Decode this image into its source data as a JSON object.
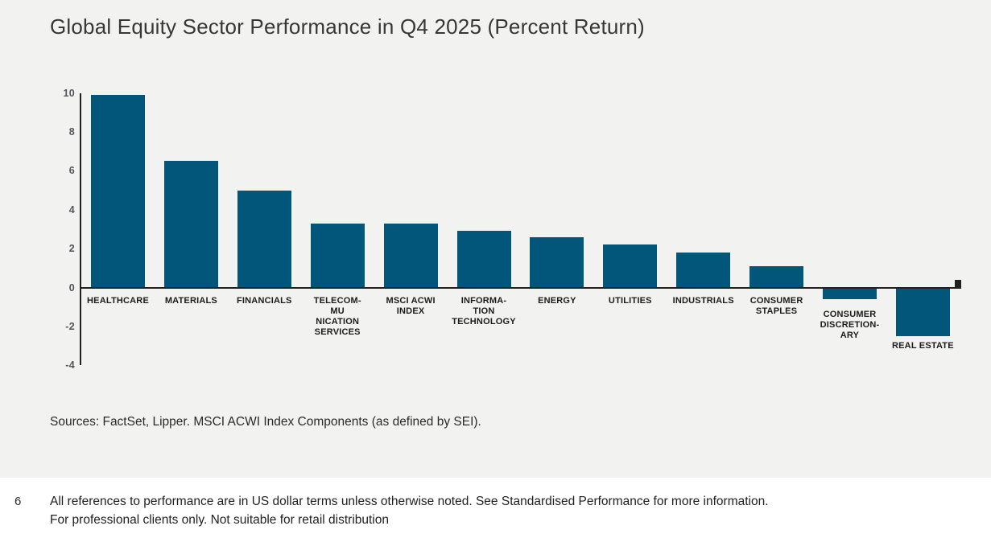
{
  "title": "Global Equity Sector Performance in Q4 2025 (Percent Return)",
  "chart_data": {
    "type": "bar",
    "title": "Global Equity Sector Performance in Q4 2025 (Percent Return)",
    "categories": [
      "HEALTHCARE",
      "MATERIALS",
      "FINANCIALS",
      "TELECOMMUNICATION SERVICES",
      "MSCI ACWI INDEX",
      "INFORMATION TECHNOLOGY",
      "ENERGY",
      "UTILITIES",
      "INDUSTRIALS",
      "CONSUMER STAPLES",
      "CONSUMER DISCRETIONARY",
      "REAL ESTATE"
    ],
    "category_label_lines": [
      [
        "HEALTHCARE"
      ],
      [
        "MATERIALS"
      ],
      [
        "FINANCIALS"
      ],
      [
        "TELECOM-",
        "MU",
        "NICATION",
        "SERVICES"
      ],
      [
        "MSCI ACWI",
        "INDEX"
      ],
      [
        "INFORMA-",
        "TION",
        "TECHNOLOGY"
      ],
      [
        "ENERGY"
      ],
      [
        "UTILITIES"
      ],
      [
        "INDUSTRIALS"
      ],
      [
        "CONSUMER",
        "STAPLES"
      ],
      [
        "CONSUMER",
        "DISCRETION-",
        "ARY"
      ],
      [
        "REAL ESTATE"
      ]
    ],
    "values": [
      9.9,
      6.5,
      5.0,
      3.3,
      3.3,
      2.9,
      2.6,
      2.2,
      1.8,
      1.1,
      -0.6,
      -2.5
    ],
    "xlabel": "",
    "ylabel": "",
    "ylim": [
      -4,
      10
    ],
    "yticks": [
      10,
      8,
      6,
      4,
      2,
      0,
      -2,
      -4
    ],
    "grid": false,
    "legend": false,
    "bar_color": "#015679",
    "axis_color": "#231f20",
    "tick_label_color": "#54555a"
  },
  "sources": "Sources: FactSet, Lipper. MSCI ACWI Index Components (as defined by SEI).",
  "footer": {
    "page_number": "6",
    "note_line1": "All references to performance are in US dollar terms unless otherwise noted. See Standardised Performance for more information.",
    "note_line2": "For professional clients only. Not suitable for retail distribution"
  }
}
